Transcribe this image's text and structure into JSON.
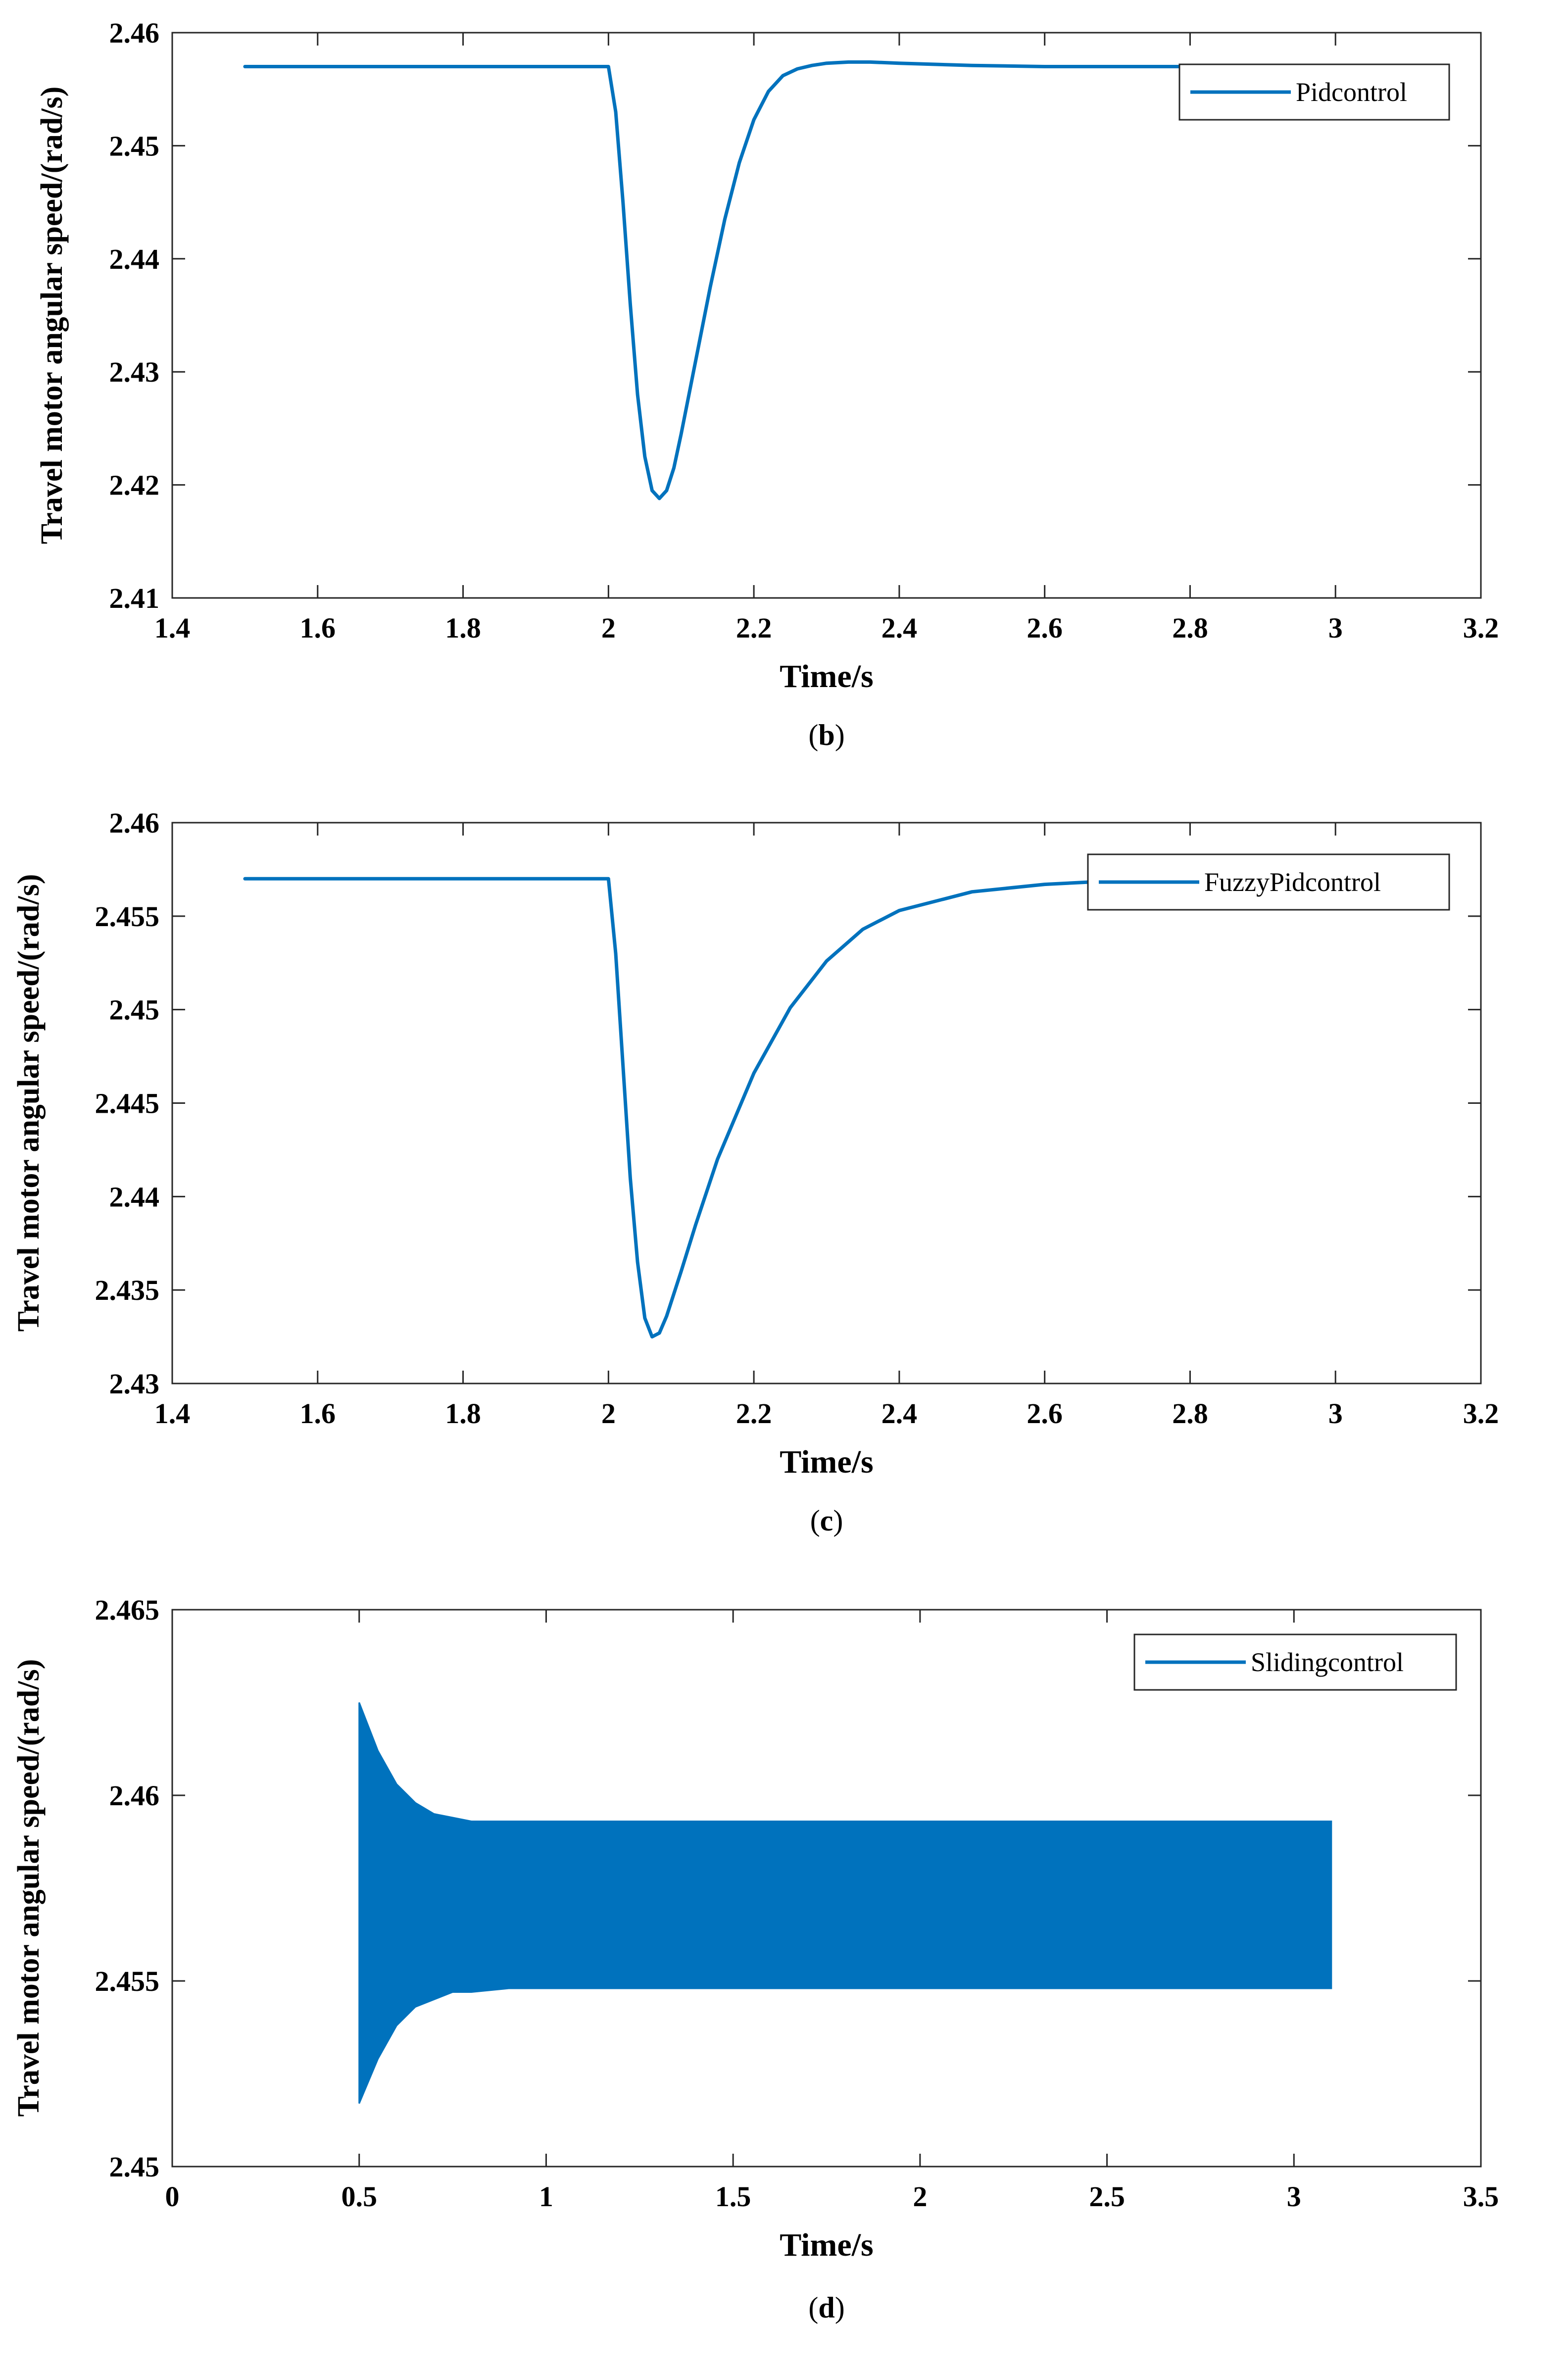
{
  "line_color": "#0072BD",
  "chart_data": [
    {
      "type": "line",
      "panel_label": "b",
      "xlabel": "Time/s",
      "ylabel": "Travel motor angular speed/(rad/s)",
      "xlim": [
        1.4,
        3.2
      ],
      "ylim": [
        2.41,
        2.46
      ],
      "xticks": [
        1.4,
        1.6,
        1.8,
        2,
        2.2,
        2.4,
        2.6,
        2.8,
        3,
        3.2
      ],
      "xtick_labels": [
        "1.4",
        "1.6",
        "1.8",
        "2",
        "2.2",
        "2.4",
        "2.6",
        "2.8",
        "3",
        "3.2"
      ],
      "yticks": [
        2.41,
        2.42,
        2.43,
        2.44,
        2.45,
        2.46
      ],
      "ytick_labels": [
        "2.41",
        "2.42",
        "2.43",
        "2.44",
        "2.45",
        "2.46"
      ],
      "grid": false,
      "legend": "top-right",
      "series": [
        {
          "name": "Pidcontrol",
          "x": [
            1.5,
            2.0,
            2.01,
            2.02,
            2.03,
            2.04,
            2.05,
            2.06,
            2.07,
            2.08,
            2.09,
            2.1,
            2.12,
            2.14,
            2.16,
            2.18,
            2.2,
            2.22,
            2.24,
            2.26,
            2.28,
            2.3,
            2.33,
            2.36,
            2.4,
            2.45,
            2.5,
            2.6,
            3.1
          ],
          "y": [
            2.457,
            2.457,
            2.453,
            2.445,
            2.436,
            2.428,
            2.4225,
            2.4195,
            2.4188,
            2.4195,
            2.4215,
            2.4245,
            2.431,
            2.4375,
            2.4435,
            2.4485,
            2.4523,
            2.4548,
            2.4562,
            2.4568,
            2.4571,
            2.4573,
            2.4574,
            2.4574,
            2.4573,
            2.4572,
            2.4571,
            2.457,
            2.457
          ]
        }
      ]
    },
    {
      "type": "line",
      "panel_label": "c",
      "xlabel": "Time/s",
      "ylabel": "Travel motor angular speed/(rad/s)",
      "xlim": [
        1.4,
        3.2
      ],
      "ylim": [
        2.43,
        2.46
      ],
      "xticks": [
        1.4,
        1.6,
        1.8,
        2,
        2.2,
        2.4,
        2.6,
        2.8,
        3,
        3.2
      ],
      "xtick_labels": [
        "1.4",
        "1.6",
        "1.8",
        "2",
        "2.2",
        "2.4",
        "2.6",
        "2.8",
        "3",
        "3.2"
      ],
      "yticks": [
        2.43,
        2.435,
        2.44,
        2.445,
        2.45,
        2.455,
        2.46
      ],
      "ytick_labels": [
        "2.43",
        "2.435",
        "2.44",
        "2.445",
        "2.45",
        "2.455",
        "2.46"
      ],
      "grid": false,
      "legend": "top-right",
      "series": [
        {
          "name": "FuzzyPidcontrol",
          "x": [
            1.5,
            2.0,
            2.01,
            2.02,
            2.03,
            2.04,
            2.05,
            2.06,
            2.07,
            2.08,
            2.09,
            2.1,
            2.12,
            2.15,
            2.2,
            2.25,
            2.3,
            2.35,
            2.4,
            2.5,
            2.6,
            2.7,
            2.8,
            2.9,
            3.0,
            3.1
          ],
          "y": [
            2.457,
            2.457,
            2.453,
            2.447,
            2.441,
            2.4365,
            2.4335,
            2.4325,
            2.4327,
            2.4336,
            2.4348,
            2.436,
            2.4385,
            2.442,
            2.4466,
            2.4501,
            2.4526,
            2.4543,
            2.4553,
            2.4563,
            2.4567,
            2.4569,
            2.457,
            2.457,
            2.457,
            2.457
          ]
        }
      ]
    },
    {
      "type": "line",
      "panel_label": "d",
      "xlabel": "Time/s",
      "ylabel": "Travel motor angular speed/(rad/s)",
      "xlim": [
        0,
        3.5
      ],
      "ylim": [
        2.45,
        2.465
      ],
      "xticks": [
        0,
        0.5,
        1,
        1.5,
        2,
        2.5,
        3,
        3.5
      ],
      "xtick_labels": [
        "0",
        "0.5",
        "1",
        "1.5",
        "2",
        "2.5",
        "3",
        "3.5"
      ],
      "yticks": [
        2.45,
        2.455,
        2.46,
        2.465
      ],
      "ytick_labels": [
        "2.45",
        "2.455",
        "2.46",
        "2.465"
      ],
      "grid": false,
      "legend": "top-right",
      "series": [
        {
          "name": "Slidingcontrol",
          "x": [
            0.5,
            0.55,
            0.6,
            0.65,
            0.7,
            0.75,
            0.8,
            0.9,
            1.0,
            1.5,
            2.0,
            2.5,
            3.1
          ],
          "y_upper": [
            2.4625,
            2.4612,
            2.4603,
            2.4598,
            2.4595,
            2.4594,
            2.4593,
            2.4593,
            2.4593,
            2.4593,
            2.4593,
            2.4593,
            2.4593
          ],
          "y_lower": [
            2.4517,
            2.4529,
            2.4538,
            2.4543,
            2.4545,
            2.4547,
            2.4547,
            2.4548,
            2.4548,
            2.4548,
            2.4548,
            2.4548,
            2.4548
          ]
        }
      ]
    }
  ]
}
